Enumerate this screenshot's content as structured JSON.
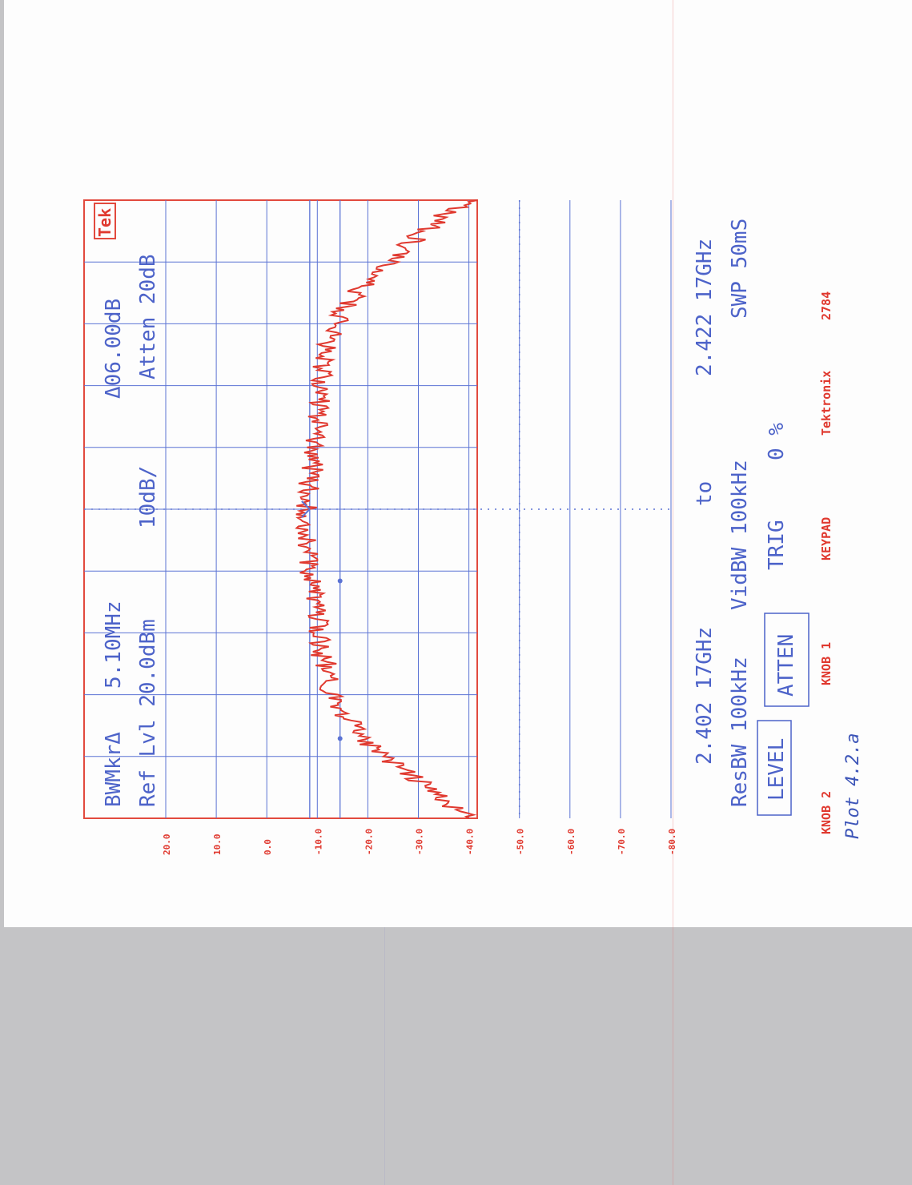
{
  "paper_colors": {
    "trace": "#e0392f",
    "graticule": "#5b73d4",
    "readout": "#4d63c9",
    "border": "#e24a3e"
  },
  "readout": {
    "marker_mode": "BWMkrΔ",
    "marker_freq": "5.10MHz",
    "delta": "Δ06.00dB",
    "brand": "Tek",
    "ref_level": "Ref Lvl 20.0dBm",
    "scale": "10dB/",
    "atten": "Atten 20dB",
    "start_freq": "2.402 17GHz",
    "to": "to",
    "stop_freq": "2.422 17GHz",
    "res_bw": "ResBW 100kHz",
    "vid_bw": "VidBW 100kHz",
    "sweep": "SWP 50mS",
    "btn_level": "LEVEL",
    "btn_atten": "ATTEN",
    "trig": "TRIG",
    "trig_value": "0 %"
  },
  "footer": {
    "knob2": "KNOB 2",
    "knob1": "KNOB 1",
    "keypad": "KEYPAD",
    "maker": "Tektronix",
    "model": "2784",
    "handwritten": "Plot 4.2.a"
  },
  "chart_data": {
    "type": "line",
    "orientation": "rotated 90 degrees clockwise",
    "title": "",
    "xlabel": "",
    "ylabel": "",
    "y_tick_labels": [
      "20.0",
      "10.0",
      "0.0",
      "-10.0",
      "-20.0",
      "-30.0",
      "-40.0",
      "-50.0",
      "-60.0",
      "-70.0",
      "-80.0"
    ],
    "ylim": [
      -80,
      20
    ],
    "xlim_ghz": [
      2.40217,
      2.42217
    ],
    "grid": true,
    "series": [
      {
        "x_ghz": [
          2.4022,
          2.4026,
          2.403,
          2.4034,
          2.4038,
          2.4042,
          2.4046,
          2.405,
          2.4054,
          2.4058,
          2.4062,
          2.4066,
          2.407,
          2.4074,
          2.4078,
          2.4082,
          2.4086,
          2.409,
          2.4094,
          2.4098,
          2.4102,
          2.4106,
          2.411,
          2.4114,
          2.4118,
          2.4122,
          2.4126,
          2.413,
          2.4134,
          2.4138,
          2.4142,
          2.4146,
          2.415,
          2.4154,
          2.4158,
          2.4162,
          2.4166,
          2.417,
          2.4174,
          2.4178,
          2.4182,
          2.4186,
          2.419,
          2.4194,
          2.4198,
          2.4202,
          2.4206,
          2.421,
          2.4214,
          2.4218,
          2.4222
        ],
        "y_dbm": [
          -40,
          -36,
          -33,
          -30,
          -27,
          -23,
          -20,
          -18,
          -16,
          -14,
          -13,
          -12,
          -12,
          -11,
          -10.5,
          -10,
          -10,
          -9.5,
          -9,
          -8.5,
          -8.5,
          -8,
          -8,
          -8,
          -8,
          -8,
          -8,
          -8.5,
          -9,
          -9,
          -9.5,
          -9.5,
          -10,
          -10,
          -10.5,
          -11,
          -11,
          -11.5,
          -12,
          -13,
          -14,
          -15,
          -17,
          -19,
          -21,
          -24,
          -27,
          -30,
          -33,
          -36,
          -40
        ]
      }
    ],
    "markers": [
      {
        "type": "delta",
        "x_ghz": 2.40475,
        "y_dbm": -14.5
      },
      {
        "type": "delta",
        "x_ghz": 2.40985,
        "y_dbm": -14.5
      },
      {
        "type": "reference",
        "x_ghz": 2.41217,
        "y_dbm": -8.5
      }
    ],
    "reference_lines_dbm": [
      -8.5,
      -14.5
    ]
  }
}
